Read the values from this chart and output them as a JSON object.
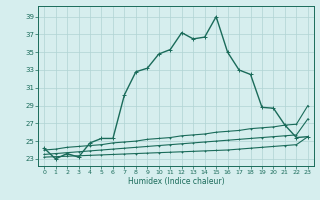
{
  "title": "",
  "xlabel": "Humidex (Indice chaleur)",
  "xlim": [
    -0.5,
    23.5
  ],
  "ylim": [
    22.2,
    40.2
  ],
  "yticks": [
    23,
    25,
    27,
    29,
    31,
    33,
    35,
    37,
    39
  ],
  "xticks": [
    0,
    1,
    2,
    3,
    4,
    5,
    6,
    7,
    8,
    9,
    10,
    11,
    12,
    13,
    14,
    15,
    16,
    17,
    18,
    19,
    20,
    21,
    22,
    23
  ],
  "bg_color": "#d6eeee",
  "line_color": "#1a6b5a",
  "grid_color": "#b0d4d4",
  "main_curve_x": [
    0,
    1,
    2,
    3,
    4,
    5,
    6,
    7,
    8,
    9,
    10,
    11,
    12,
    13,
    14,
    15,
    16,
    17,
    18,
    19,
    20,
    21,
    22,
    23
  ],
  "main_curve_y": [
    24.2,
    23.0,
    23.6,
    23.2,
    24.8,
    25.3,
    25.3,
    30.2,
    32.8,
    33.2,
    34.8,
    35.3,
    37.2,
    36.5,
    36.7,
    39.0,
    35.0,
    33.0,
    32.5,
    28.8,
    28.7,
    26.8,
    25.4,
    25.5
  ],
  "ref_line1_x": [
    0,
    1,
    2,
    3,
    4,
    5,
    6,
    7,
    8,
    9,
    10,
    11,
    12,
    13,
    14,
    15,
    16,
    17,
    18,
    19,
    20,
    21,
    22,
    23
  ],
  "ref_line1_y": [
    24.0,
    24.1,
    24.3,
    24.4,
    24.5,
    24.6,
    24.8,
    24.9,
    25.0,
    25.2,
    25.3,
    25.4,
    25.6,
    25.7,
    25.8,
    26.0,
    26.1,
    26.2,
    26.4,
    26.5,
    26.6,
    26.8,
    26.9,
    29.0
  ],
  "ref_line2_x": [
    0,
    1,
    2,
    3,
    4,
    5,
    6,
    7,
    8,
    9,
    10,
    11,
    12,
    13,
    14,
    15,
    16,
    17,
    18,
    19,
    20,
    21,
    22,
    23
  ],
  "ref_line2_y": [
    23.5,
    23.6,
    23.7,
    23.8,
    23.9,
    24.0,
    24.1,
    24.2,
    24.3,
    24.4,
    24.5,
    24.6,
    24.7,
    24.8,
    24.9,
    25.0,
    25.1,
    25.2,
    25.3,
    25.4,
    25.5,
    25.6,
    25.7,
    27.5
  ],
  "ref_line3_x": [
    0,
    1,
    2,
    3,
    4,
    5,
    6,
    7,
    8,
    9,
    10,
    11,
    12,
    13,
    14,
    15,
    16,
    17,
    18,
    19,
    20,
    21,
    22,
    23
  ],
  "ref_line3_y": [
    23.2,
    23.25,
    23.3,
    23.35,
    23.4,
    23.45,
    23.5,
    23.55,
    23.6,
    23.65,
    23.7,
    23.75,
    23.8,
    23.85,
    23.9,
    23.95,
    24.0,
    24.1,
    24.2,
    24.3,
    24.4,
    24.5,
    24.6,
    25.5
  ]
}
